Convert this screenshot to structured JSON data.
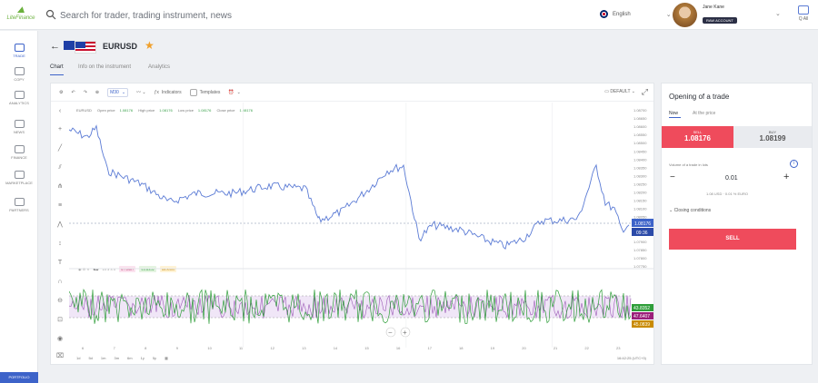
{
  "header": {
    "logo_text": "LiteFinance",
    "search_placeholder": "Search for trader, trading instrument, news",
    "language": "English",
    "user_name": "Jane Kane",
    "user_badge": "RAW ACCOUNT",
    "notifications_label": "Q All"
  },
  "sidebar": {
    "items": [
      {
        "label": "TRADE",
        "active": true
      },
      {
        "label": "COPY"
      },
      {
        "label": "ANALYTICS"
      },
      {
        "label": "NEWS"
      },
      {
        "label": "FINANCE"
      },
      {
        "label": "MARKETPLACE"
      },
      {
        "label": "PARTNERS"
      }
    ],
    "portfolio": "PORTFOLIO"
  },
  "instrument": {
    "symbol": "EURUSD",
    "tabs": [
      "Chart",
      "Info on the instrument",
      "Analytics"
    ]
  },
  "chart": {
    "toolbar": {
      "timeframe": "M30",
      "indicators": "Indicators",
      "templates": "Templates",
      "mode": "DEFAULT"
    },
    "legend": {
      "symbol": "EURUSD",
      "open_label": "Open price",
      "open": "1.08176",
      "high_label": "High price",
      "high": "1.08176",
      "low_label": "Low price",
      "low": "1.08176",
      "close_label": "Close price",
      "close": "1.08176"
    },
    "price_axis": [
      "1.08700",
      "1.08650",
      "1.08600",
      "1.08550",
      "1.08500",
      "1.08450",
      "1.08400",
      "1.08350",
      "1.08300",
      "1.08250",
      "1.08200",
      "1.08150",
      "1.08100",
      "1.08050",
      "1.08000",
      "1.07950",
      "1.07900",
      "1.07850",
      "1.07800",
      "1.07750"
    ],
    "current_price": "1.08176",
    "countdown": "09:36",
    "indicator": {
      "name": "KD",
      "params": "14 3 3 3",
      "v1": "47.6407",
      "v2": "43.8352",
      "v3": "68.8400"
    },
    "osc_values": [
      "43.8352",
      "47.6407",
      "45.0839"
    ],
    "date_ticks": [
      "6",
      "7",
      "8",
      "9",
      "10",
      "11",
      "12",
      "13",
      "14",
      "15",
      "16",
      "17",
      "18",
      "19",
      "20",
      "21",
      "22",
      "23"
    ],
    "ranges": [
      "1d",
      "5d",
      "1m",
      "3m",
      "6m",
      "1y",
      "5y"
    ],
    "timezone": "16:42:25 (UTC+3)",
    "colors": {
      "line": "#5b7bd5",
      "osc_green": "#2f9e3a",
      "osc_purple": "#9b59b6",
      "band": "#f0e6f7"
    }
  },
  "trade_panel": {
    "title": "Opening of a trade",
    "tabs": [
      "Now",
      "At the price"
    ],
    "sell_label": "SELL",
    "sell_price": "1.08176",
    "buy_label": "BUY",
    "buy_price": "1.08199",
    "volume_label": "Volume of a trade in lots",
    "volume": "0.01",
    "volume_sub": "1.08 USD · 0.01 % EURO",
    "closing_conditions": "Closing conditions",
    "sell_button": "SELL"
  }
}
